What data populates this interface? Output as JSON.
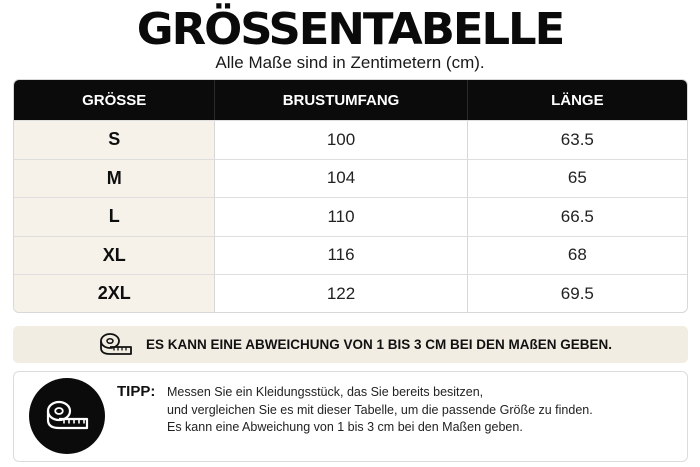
{
  "header": {
    "title": "GRÖSSENTABELLE",
    "subtitle": "Alle Maße sind in Zentimetern (cm)."
  },
  "table": {
    "columns": [
      "GRÖSSE",
      "BRUSTUMFANG",
      "LÄNGE"
    ],
    "rows": [
      {
        "size": "S",
        "chest": "100",
        "length": "63.5"
      },
      {
        "size": "M",
        "chest": "104",
        "length": "65"
      },
      {
        "size": "L",
        "chest": "110",
        "length": "66.5"
      },
      {
        "size": "XL",
        "chest": "116",
        "length": "68"
      },
      {
        "size": "2XL",
        "chest": "122",
        "length": "69.5"
      }
    ],
    "colors": {
      "header_bg": "#0b0b0b",
      "size_col_bg": "#f6f2ea"
    }
  },
  "note": {
    "icon": "measuring-tape-icon",
    "text": "ES KANN EINE ABWEICHUNG VON 1 BIS 3 CM BEI DEN MAßEN GEBEN.",
    "bg": "#f2ede3"
  },
  "tip": {
    "icon": "measuring-tape-icon",
    "label": "TIPP:",
    "lines": [
      "Messen Sie ein Kleidungsstück, das Sie bereits besitzen,",
      "und vergleichen Sie es mit dieser Tabelle, um die passende Größe zu finden.",
      "Es kann eine Abweichung von 1 bis 3 cm bei den Maßen geben."
    ]
  }
}
